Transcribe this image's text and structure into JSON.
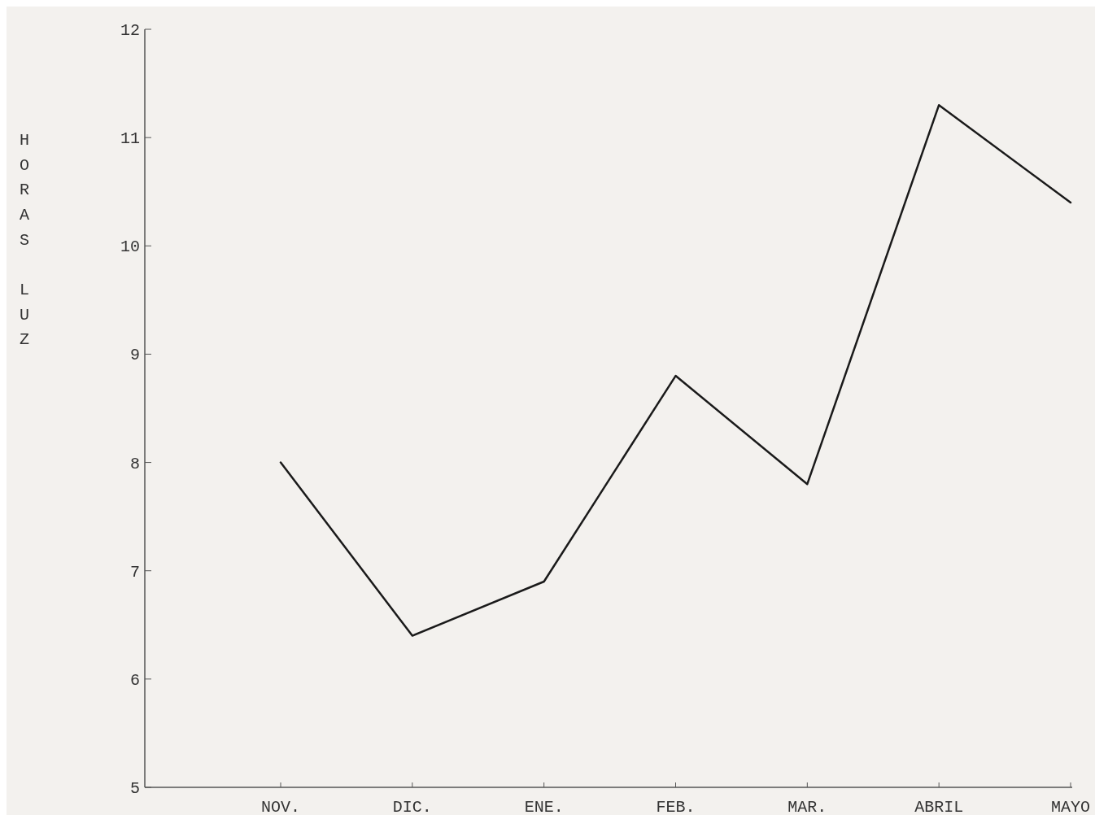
{
  "chart_data": {
    "type": "line",
    "ylabel": "HORAS LUZ",
    "categories": [
      "NOV.",
      "DIC.",
      "ENE.",
      "FEB.",
      "MAR.",
      "ABRIL",
      "MAYO"
    ],
    "series": [
      {
        "color": "#1a1a1a",
        "values": [
          8.0,
          6.4,
          6.9,
          8.8,
          7.8,
          11.3,
          10.4
        ]
      }
    ],
    "ylim": [
      5,
      12
    ],
    "yticks": [
      5,
      6,
      7,
      8,
      9,
      10,
      11,
      12
    ],
    "grid": false,
    "marker": "none",
    "line_style": "solid"
  }
}
